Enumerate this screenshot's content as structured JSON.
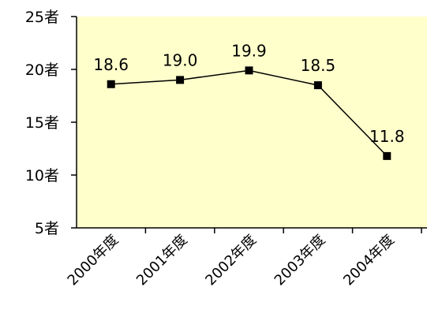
{
  "chart_data": {
    "type": "line",
    "categories": [
      "2000年度",
      "2001年度",
      "2002年度",
      "2003年度",
      "2004年度"
    ],
    "series": [
      {
        "values": [
          18.6,
          19.0,
          19.9,
          18.5,
          11.8
        ]
      }
    ],
    "data_labels": [
      "18.6",
      "19.0",
      "19.9",
      "18.5",
      "11.8"
    ],
    "y_ticks": [
      5,
      10,
      15,
      20,
      25
    ],
    "y_tick_labels": [
      "5者",
      "10者",
      "15者",
      "20者",
      "25者"
    ],
    "ylim": [
      5,
      25
    ],
    "grid": false,
    "marker": "square",
    "colors": {
      "plot_background": "#ffffcc",
      "line": "#000000",
      "marker": "#000000"
    }
  }
}
